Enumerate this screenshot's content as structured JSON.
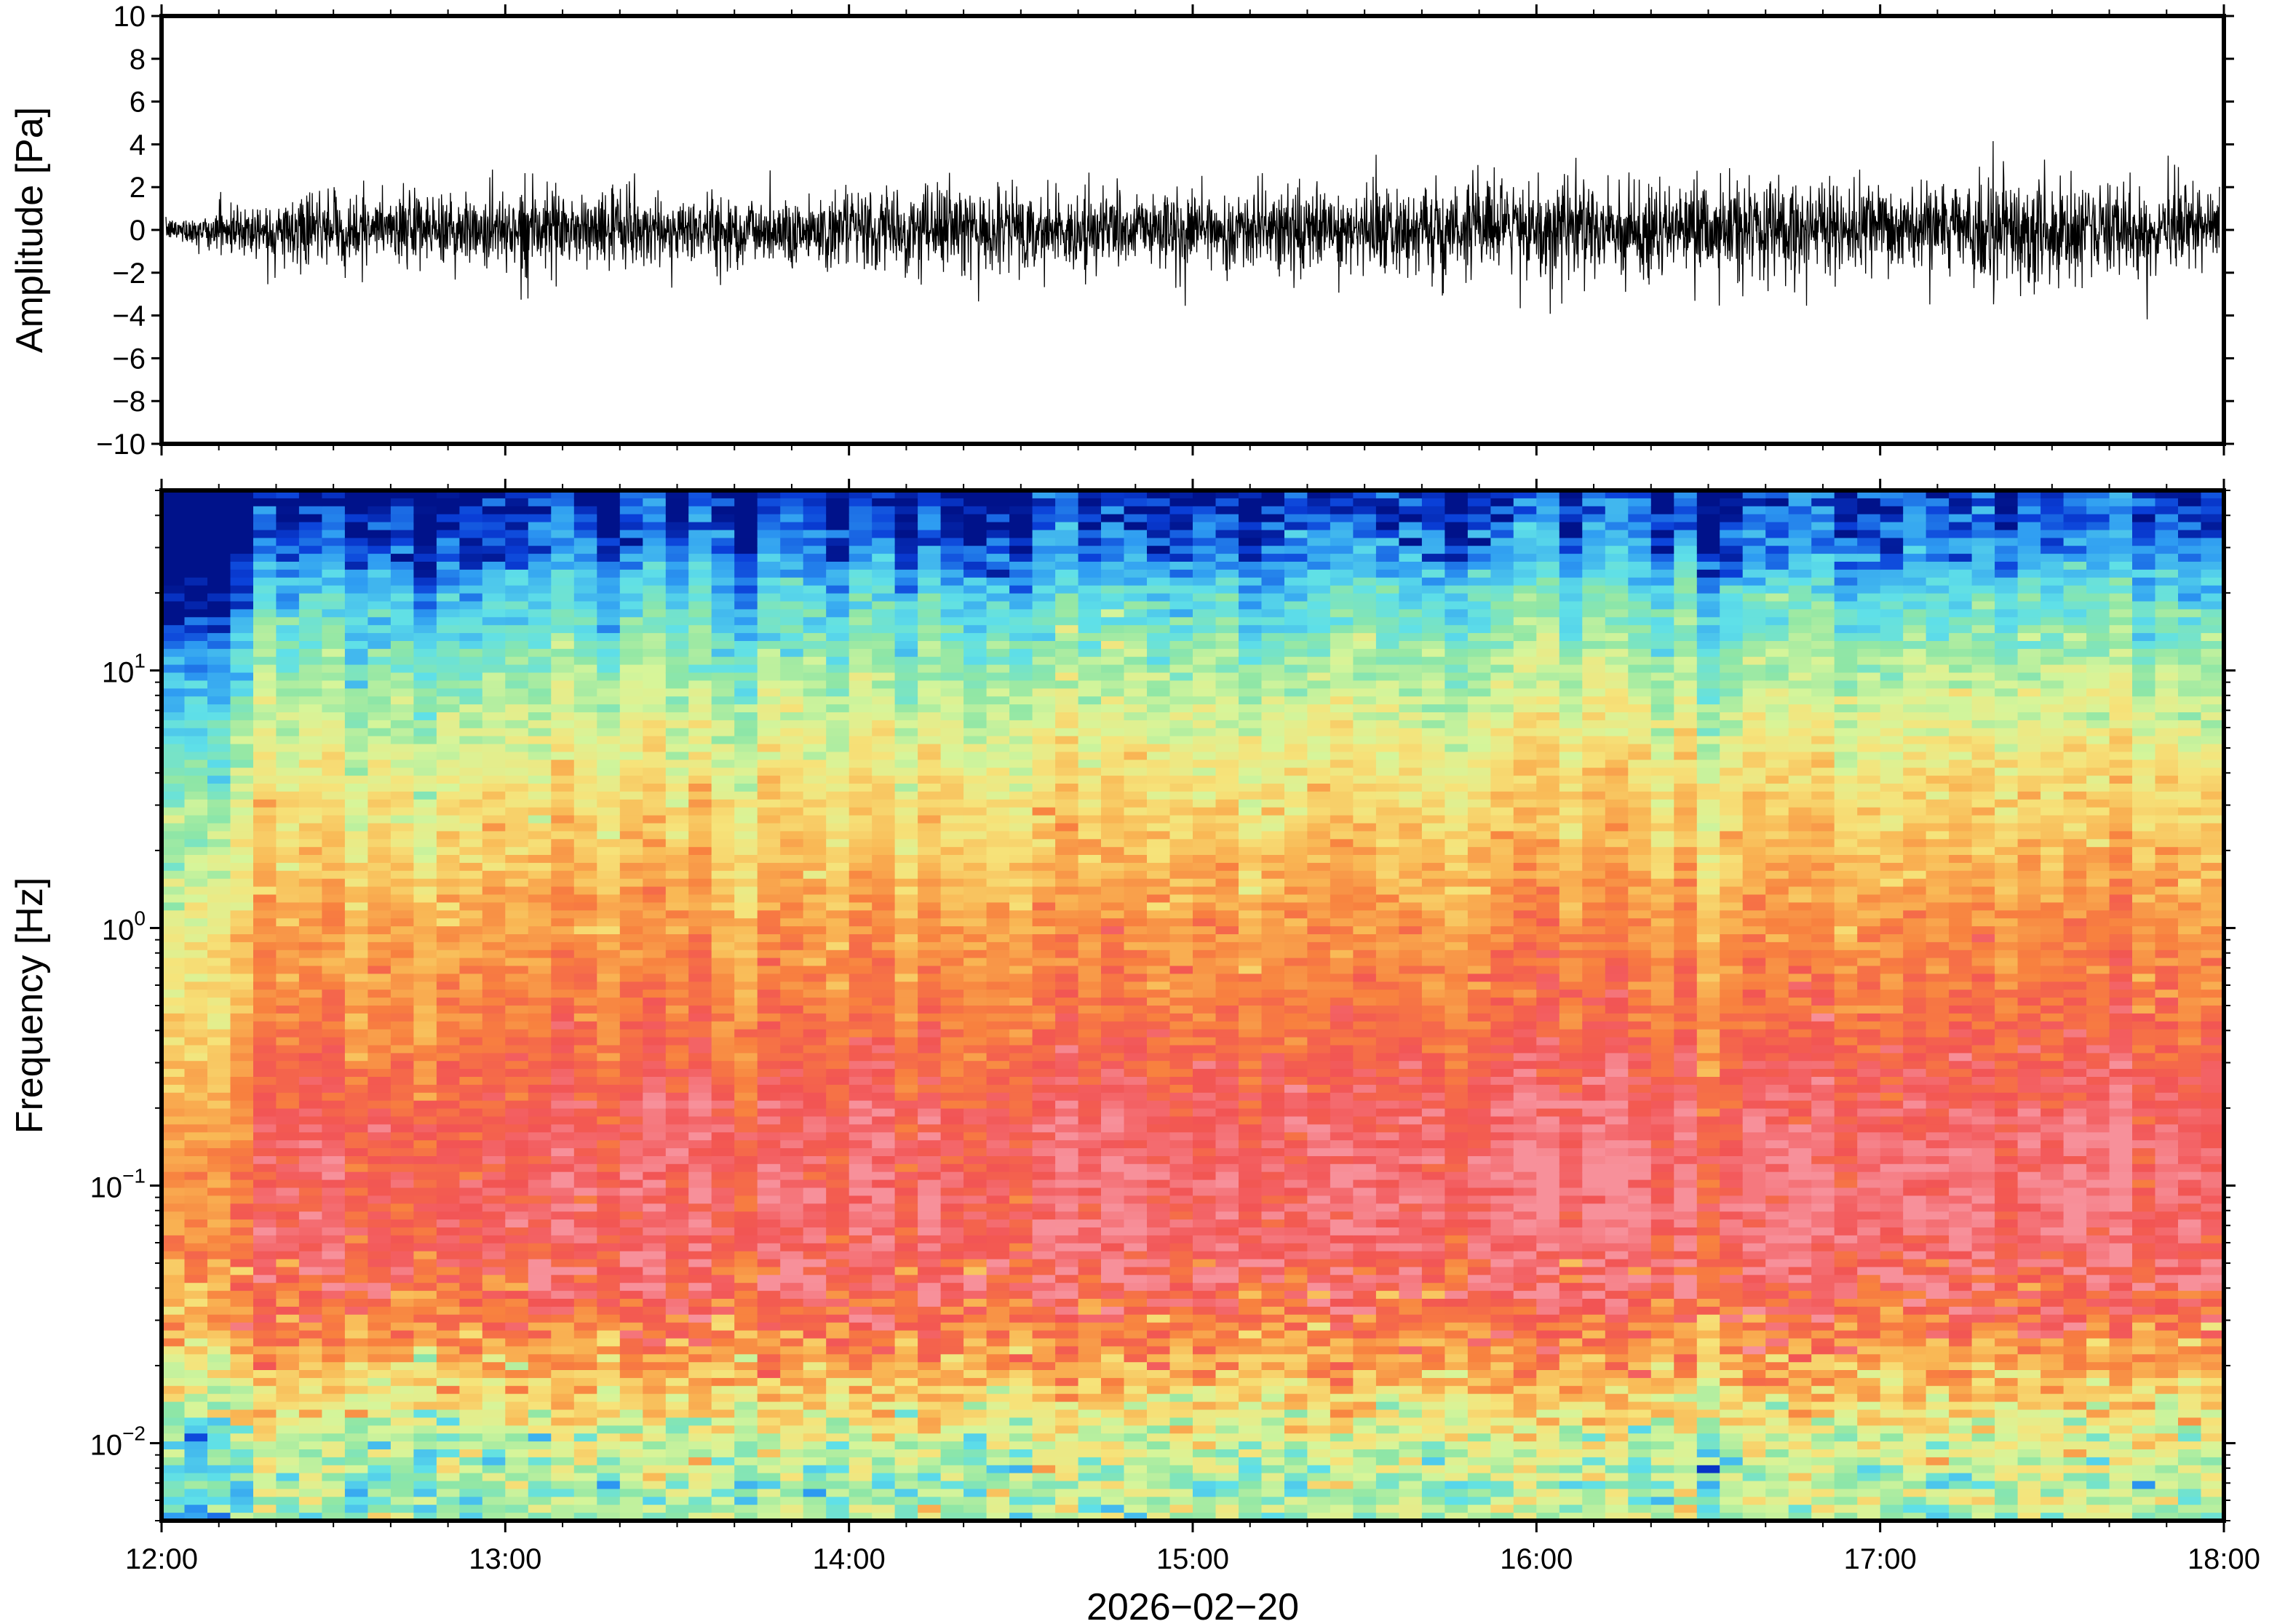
{
  "chart_data": [
    {
      "type": "line",
      "panel": "waveform",
      "ylabel": "Amplitude [Pa]",
      "ylim": [
        -10,
        10
      ],
      "yticks": [
        "10",
        "8",
        "6",
        "4",
        "2",
        "0",
        "−2",
        "−4",
        "−6",
        "−8",
        "−10"
      ],
      "ytick_values": [
        10,
        8,
        6,
        4,
        2,
        0,
        -2,
        -4,
        -6,
        -8,
        -10
      ],
      "xlim": [
        "12:00",
        "18:00"
      ],
      "envelope": {
        "x": [
          "12:00",
          "12:15",
          "12:30",
          "12:45",
          "13:00",
          "13:15",
          "13:30",
          "13:45",
          "14:00",
          "14:15",
          "14:30",
          "14:45",
          "15:00",
          "15:15",
          "15:30",
          "15:45",
          "16:00",
          "16:15",
          "16:30",
          "16:45",
          "17:00",
          "17:15",
          "17:30",
          "17:45",
          "18:00"
        ],
        "typical_abs_pa": [
          0.4,
          1.2,
          1.4,
          1.5,
          1.6,
          1.6,
          1.5,
          1.5,
          1.6,
          1.7,
          1.6,
          1.6,
          1.6,
          1.7,
          1.7,
          1.8,
          2.0,
          2.1,
          2.1,
          1.9,
          1.8,
          1.9,
          2.0,
          1.9,
          1.8
        ],
        "peak_pos_pa": [
          1,
          2.3,
          2.4,
          2.8,
          3.1,
          2.9,
          3.2,
          2.9,
          2.6,
          2.8,
          2.6,
          2.7,
          3.0,
          2.8,
          4.0,
          2.9,
          3.3,
          3.6,
          3.3,
          2.9,
          2.8,
          5.0,
          4.0,
          3.5,
          4.0
        ],
        "peak_neg_pa": [
          -1,
          -2.5,
          -2.7,
          -3.0,
          -3.2,
          -3.6,
          -3.8,
          -3.0,
          -3.0,
          -3.6,
          -3.2,
          -3.0,
          -3.6,
          -3.9,
          -3.0,
          -3.2,
          -4.7,
          -4.5,
          -4.0,
          -3.6,
          -3.3,
          -3.6,
          -3.8,
          -4.5,
          -3.8
        ]
      },
      "color": "#000000"
    },
    {
      "type": "heatmap",
      "panel": "spectrogram",
      "ylabel": "Frequency [Hz]",
      "xlabel": "2026−02−20",
      "xticks": [
        "12:00",
        "13:00",
        "14:00",
        "15:00",
        "16:00",
        "17:00",
        "18:00"
      ],
      "yscale": "log",
      "ylim": [
        0.005,
        50
      ],
      "yticks": [
        {
          "base": "10",
          "exp": "−2",
          "value": 0.01
        },
        {
          "base": "10",
          "exp": "−1",
          "value": 0.1
        },
        {
          "base": "10",
          "exp": "0",
          "value": 1
        },
        {
          "base": "10",
          "exp": "1",
          "value": 10
        }
      ],
      "colormap": "jet-like (dark blue low → cyan → green → yellow → orange → red → pink high)",
      "colors": [
        "#00128a",
        "#0a3fd8",
        "#2e9cf2",
        "#5fe0e8",
        "#8ee6a6",
        "#d6f59a",
        "#f6e37a",
        "#f9b855",
        "#f8813f",
        "#f25454",
        "#f7909a"
      ],
      "levels": [
        -0.2,
        0.3,
        1.0,
        2.1,
        3.0,
        4.0,
        5.0,
        6.0,
        7.2,
        8.4,
        9.5
      ],
      "frequency_profile_level": {
        "hz": [
          50,
          30,
          20,
          10,
          5,
          2,
          1,
          0.5,
          0.3,
          0.2,
          0.1,
          0.06,
          0.04,
          0.03,
          0.02,
          0.015,
          0.01,
          0.007,
          0.005
        ],
        "level": [
          -0.2,
          0.6,
          1.8,
          3.2,
          4.4,
          5.6,
          6.6,
          7.2,
          7.8,
          8.3,
          8.7,
          8.6,
          8.2,
          7.5,
          6.2,
          5.2,
          4.0,
          3.3,
          3.6
        ]
      },
      "time_adjust": {
        "x": [
          "12:00",
          "12:05",
          "12:15",
          "12:30",
          "13:00",
          "14:00",
          "15:00",
          "16:00",
          "17:00",
          "18:00"
        ],
        "delta_level": [
          -2.2,
          -1.6,
          -0.6,
          -0.2,
          0,
          0,
          0.1,
          0.4,
          0.4,
          0.3
        ]
      }
    }
  ]
}
